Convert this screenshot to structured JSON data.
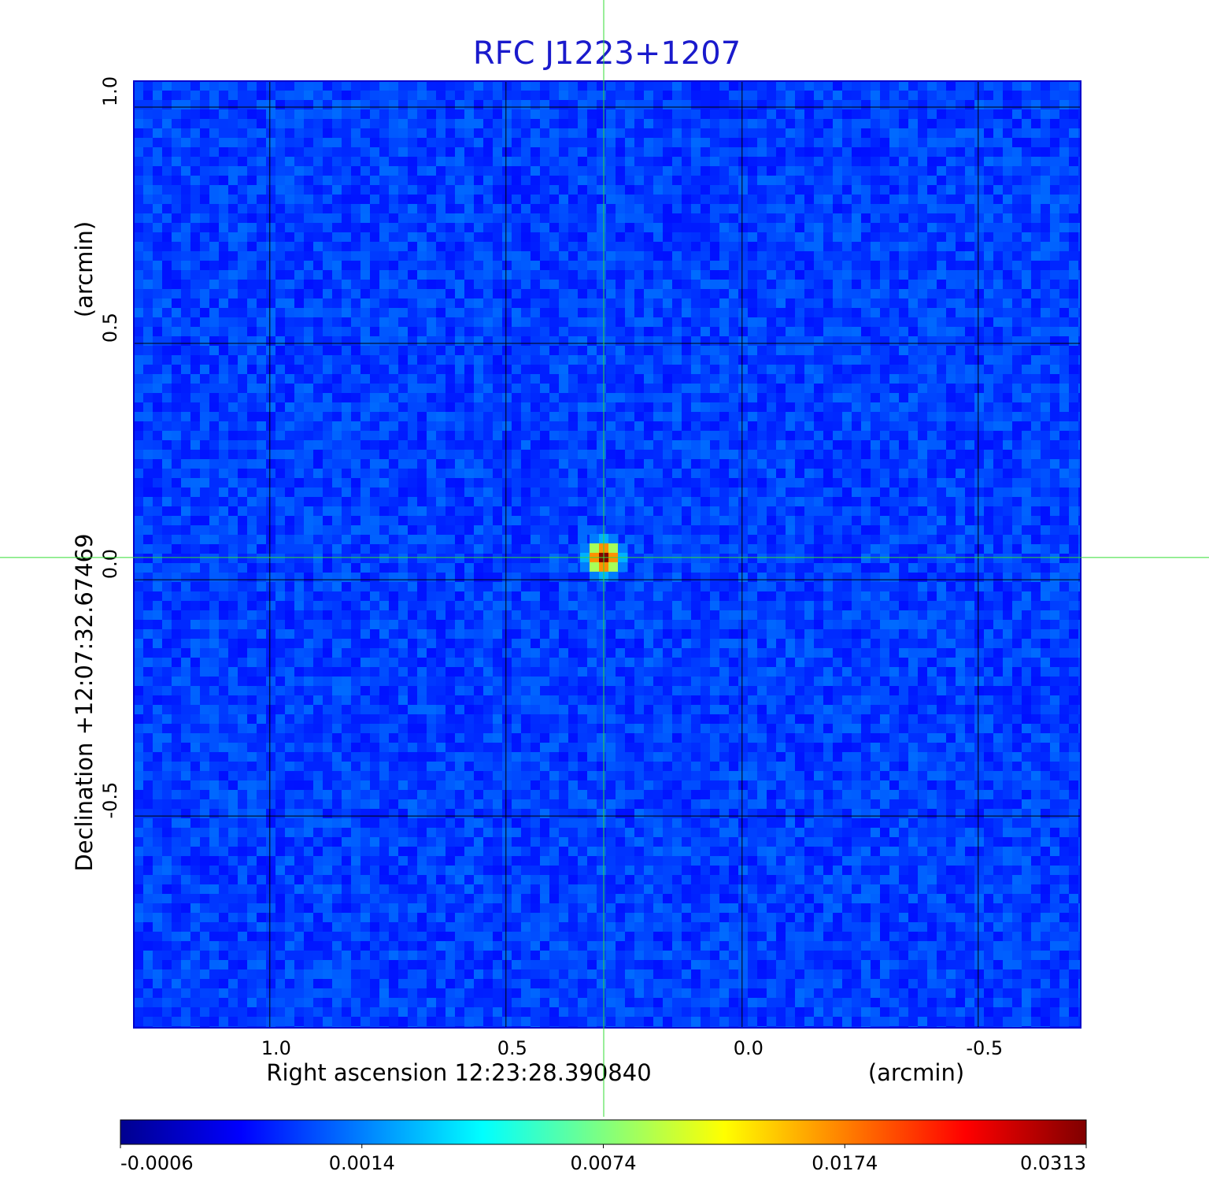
{
  "chart_data": {
    "type": "image",
    "title": "RFC J1223+1207",
    "title_color": "#1a1acc",
    "xlabel": "Right ascension  12:23:28.390840",
    "xunit": "(arcmin)",
    "ylabel": "Declination  +12:07:32.67469",
    "yunit": "(arcmin)",
    "xlim": [
      1.288,
      -0.717
    ],
    "ylim": [
      -0.948,
      1.055
    ],
    "xticks": [
      {
        "value": 1,
        "label": "1.0"
      },
      0.5,
      {
        "value": 0,
        "label": "0.0"
      },
      -0.5
    ],
    "yticks": [
      {
        "value": 1,
        "label": "1.0"
      },
      0.5,
      {
        "value": 0,
        "label": "0.0"
      },
      -0.5
    ],
    "grid": true,
    "crosshair": {
      "x": 0.293,
      "y": 0.047,
      "color": "#33dd33"
    },
    "source": {
      "x": 0.293,
      "y": 0.047,
      "peak": 0.0313
    },
    "colormap": "jet",
    "colorbar_ticks": [
      -0.0006,
      0.0014,
      0.0074,
      0.0174,
      0.0313
    ]
  }
}
